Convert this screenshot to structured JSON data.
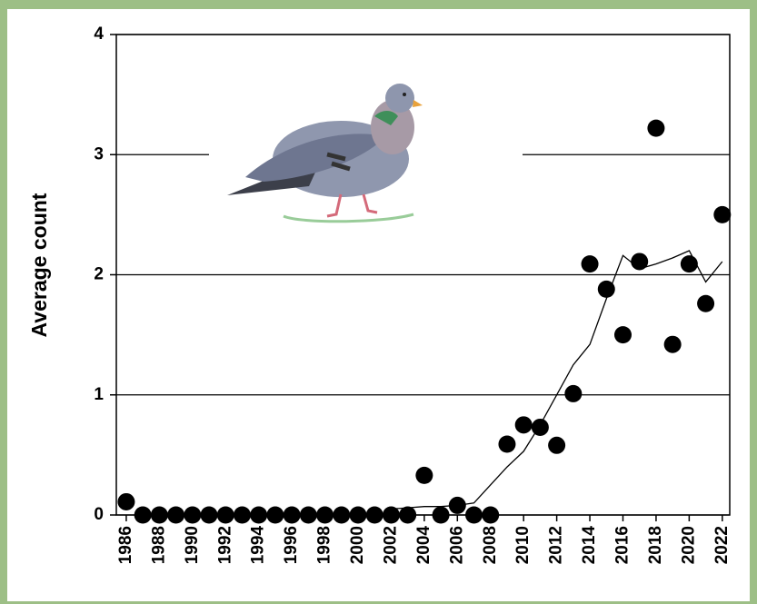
{
  "chart_data": {
    "type": "scatter",
    "y_label": "Average count",
    "x": [
      1986,
      1987,
      1988,
      1989,
      1990,
      1991,
      1992,
      1993,
      1994,
      1995,
      1996,
      1997,
      1998,
      1999,
      2000,
      2001,
      2002,
      2003,
      2004,
      2005,
      2006,
      2007,
      2008,
      2009,
      2010,
      2011,
      2012,
      2013,
      2014,
      2015,
      2016,
      2017,
      2018,
      2019,
      2020,
      2021,
      2022
    ],
    "series": [
      {
        "mode": "markers",
        "color": "#000000",
        "values": [
          0.11,
          0,
          0,
          0,
          0,
          0,
          0,
          0,
          0,
          0,
          0,
          0,
          0,
          0,
          0,
          0,
          0,
          0,
          0.33,
          0,
          0.08,
          0,
          0,
          0.59,
          0.75,
          0.73,
          0.58,
          1.01,
          2.09,
          1.88,
          1.5,
          2.11,
          3.22,
          1.42,
          2.09,
          1.76,
          2.5
        ]
      },
      {
        "mode": "line",
        "color": "#000000",
        "values": [
          null,
          null,
          null,
          null,
          null,
          null,
          null,
          null,
          null,
          null,
          null,
          null,
          null,
          null,
          null,
          null,
          0.05,
          0.06,
          0.07,
          0.07,
          0.08,
          0.1,
          0.25,
          0.4,
          0.53,
          0.75,
          1.0,
          1.25,
          1.42,
          1.8,
          2.16,
          2.05,
          2.09,
          2.14,
          2.2,
          1.94,
          2.11
        ]
      }
    ],
    "xlim": [
      1985.4,
      2022.45
    ],
    "xticks": [
      1986,
      1988,
      1990,
      1992,
      1994,
      1996,
      1998,
      2000,
      2002,
      2004,
      2006,
      2008,
      2010,
      2012,
      2014,
      2016,
      2018,
      2020,
      2022
    ],
    "ylim": [
      0,
      4
    ],
    "yticks": [
      0,
      1,
      2,
      3,
      4
    ],
    "grid": true
  }
}
